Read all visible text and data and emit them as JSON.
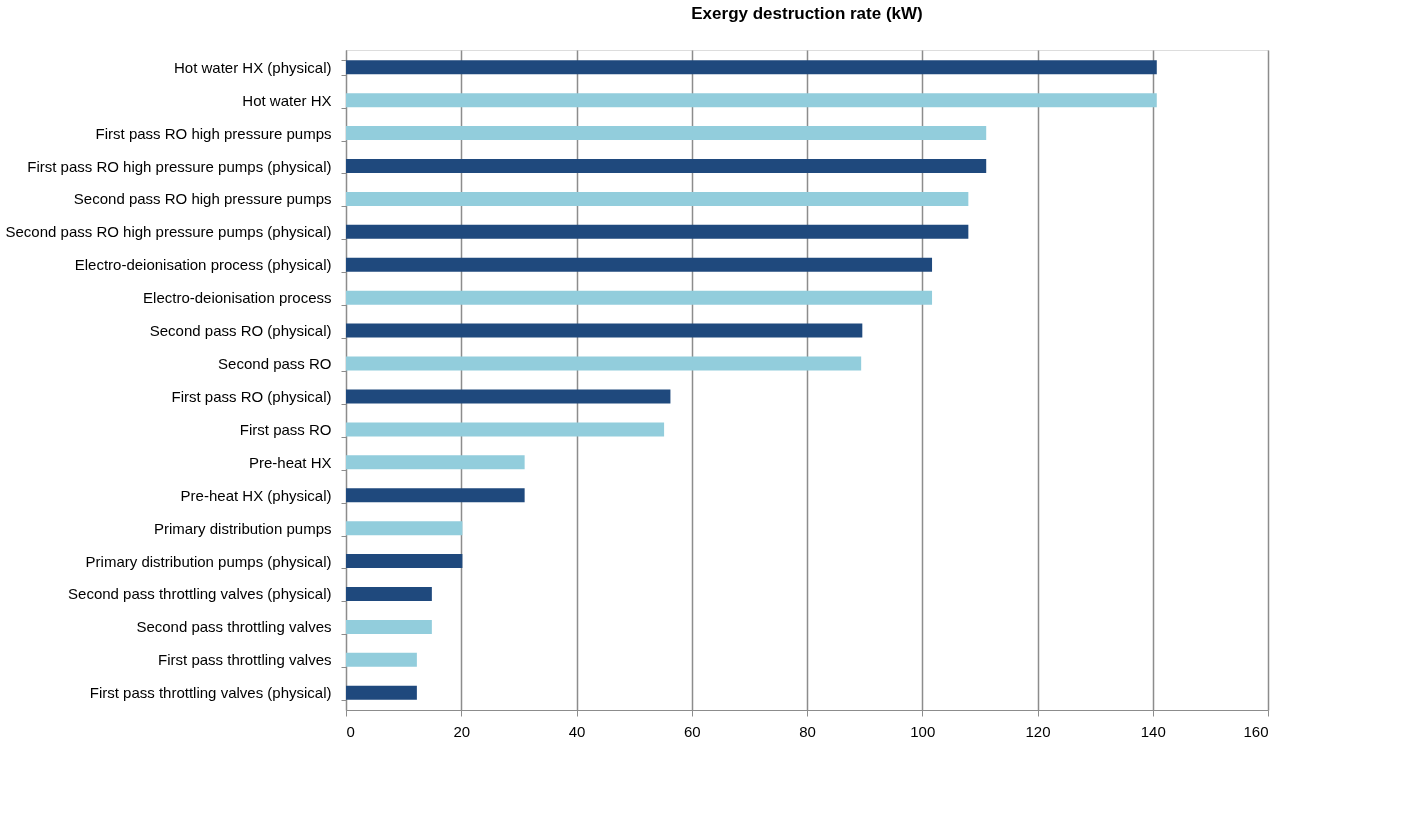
{
  "chart_data": {
    "type": "bar",
    "orientation": "horizontal",
    "title": "Exergy destruction rate (kW)",
    "categories": [
      "Hot water HX (physical)",
      "Hot water HX ",
      "First pass RO high pressure pumps",
      "First pass RO high pressure pumps (physical)",
      "Second pass RO high pressure pumps",
      "Second pass RO high pressure pumps (physical)",
      "Electro-deionisation process (physical)",
      "Electro-deionisation process",
      "Second pass RO (physical)",
      "Second pass RO",
      "First pass RO (physical)",
      "First pass RO ",
      "Pre-heat HX ",
      "Pre-heat HX (physical)",
      "Primary distribution pumps",
      "Primary distribution pumps (physical)",
      "Second pass throttling valves (physical)",
      "Second pass throttling valves",
      "First pass throttling valves",
      "First pass throttling valves (physical)"
    ],
    "values": [
      140.7,
      140.7,
      111.1,
      111.1,
      108.0,
      108.0,
      101.7,
      101.7,
      89.6,
      89.4,
      56.3,
      55.2,
      31.0,
      31.0,
      20.2,
      20.2,
      14.9,
      14.9,
      12.3,
      12.3
    ],
    "colors": [
      "#1f497d",
      "#92cddc",
      "#92cddc",
      "#1f497d",
      "#92cddc",
      "#1f497d",
      "#1f497d",
      "#92cddc",
      "#1f497d",
      "#92cddc",
      "#1f497d",
      "#92cddc",
      "#92cddc",
      "#1f497d",
      "#92cddc",
      "#1f497d",
      "#1f497d",
      "#92cddc",
      "#92cddc",
      "#1f497d"
    ],
    "xlim": [
      0,
      160
    ],
    "xticks": [
      0,
      20,
      40,
      60,
      80,
      100,
      120,
      140,
      160
    ],
    "grid": "x"
  }
}
